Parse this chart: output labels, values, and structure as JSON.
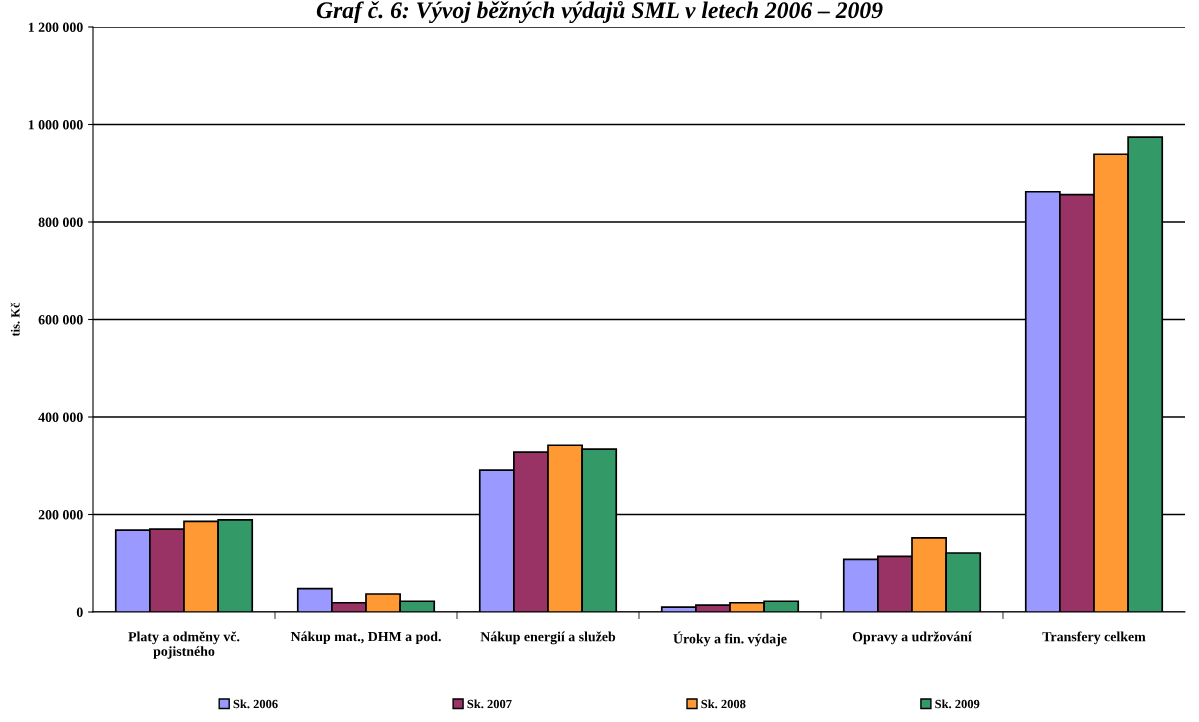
{
  "chart_data": {
    "type": "bar",
    "title": "Graf č. 6: Vývoj běžných výdajů SML v letech 2006 – 2009",
    "ylabel": "tis. Kč",
    "categories": [
      "Platy a odměny vč.\npojistného",
      "Nákup mat., DHM a pod.",
      "Nákup energií a služeb",
      "Úroky a fin. výdaje",
      "Opravy a udržování",
      "Transfery celkem"
    ],
    "series": [
      {
        "name": "Sk. 2006",
        "color": "#9999ff",
        "values": [
          168000,
          48000,
          291000,
          10000,
          108000,
          862000
        ]
      },
      {
        "name": "Sk. 2007",
        "color": "#993366",
        "values": [
          170000,
          19000,
          328000,
          14000,
          114000,
          856000
        ]
      },
      {
        "name": "Sk. 2008",
        "color": "#ff9933",
        "values": [
          186000,
          37000,
          342000,
          19000,
          152000,
          939000
        ]
      },
      {
        "name": "Sk. 2009",
        "color": "#339966",
        "values": [
          189000,
          22000,
          334000,
          22000,
          121000,
          974000
        ]
      }
    ],
    "ylim": [
      0,
      1200000
    ],
    "yticks": [
      {
        "value": 0,
        "label": "0"
      },
      {
        "value": 200000,
        "label": "200 000"
      },
      {
        "value": 400000,
        "label": "400 000"
      },
      {
        "value": 600000,
        "label": "600 000"
      },
      {
        "value": 800000,
        "label": "800 000"
      },
      {
        "value": 1000000,
        "label": "1 000 000"
      },
      {
        "value": 1200000,
        "label": "1 200 000"
      }
    ],
    "grid": "y",
    "legend": "bottom"
  }
}
